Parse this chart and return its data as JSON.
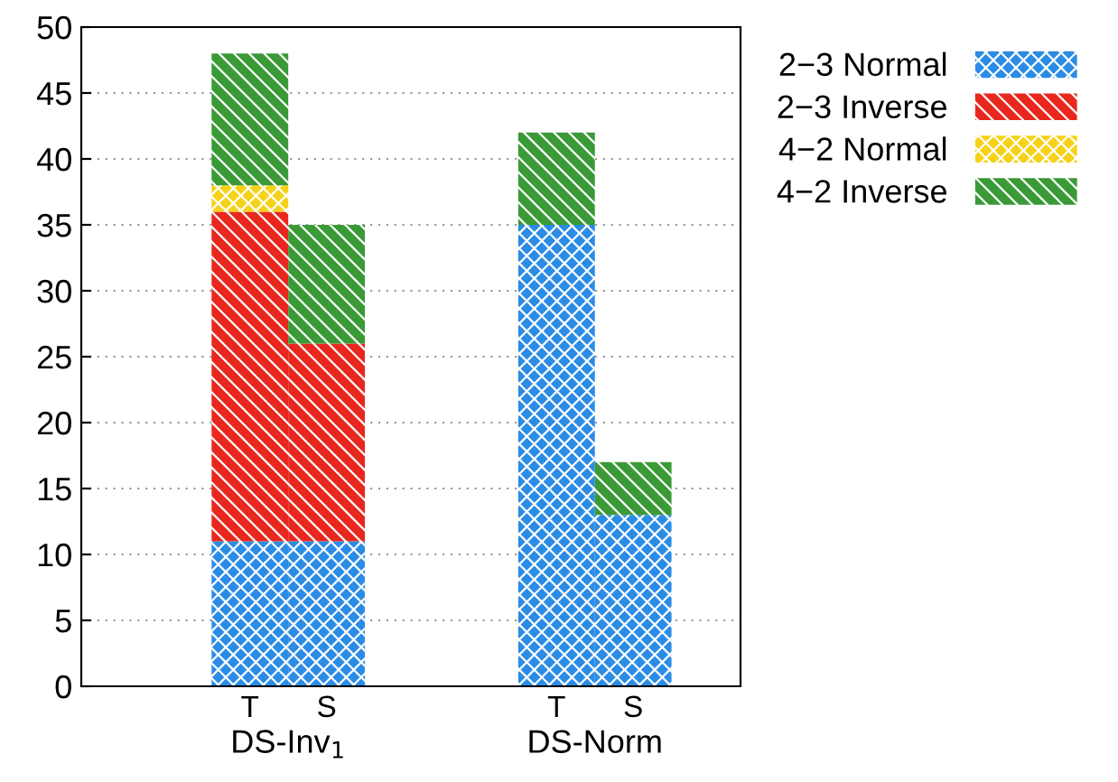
{
  "chart_data": {
    "type": "bar",
    "stacked": true,
    "categories": [
      "T",
      "S",
      null,
      null,
      "T",
      "S"
    ],
    "series": [
      {
        "name": "2−3 Normal",
        "color": "#2b8ce6",
        "values": [
          11,
          11,
          null,
          null,
          35,
          13
        ]
      },
      {
        "name": "2−3 Inverse",
        "color": "#e8281e",
        "values": [
          25,
          15,
          null,
          null,
          0,
          0
        ]
      },
      {
        "name": "4−2 Normal",
        "color": "#f5d218",
        "values": [
          2,
          0,
          null,
          null,
          0,
          0
        ]
      },
      {
        "name": "4−2 Inverse",
        "color": "#3a9a36",
        "values": [
          10,
          9,
          null,
          null,
          7,
          4
        ]
      }
    ],
    "annotations": [
      "DS-Inv$_{1}$",
      "DS-Norm"
    ],
    "ylim": [
      0,
      50
    ],
    "yticks": [
      0,
      5,
      10,
      15,
      20,
      25,
      30,
      35,
      40,
      45,
      50
    ],
    "grid": "y",
    "legend": "right"
  }
}
